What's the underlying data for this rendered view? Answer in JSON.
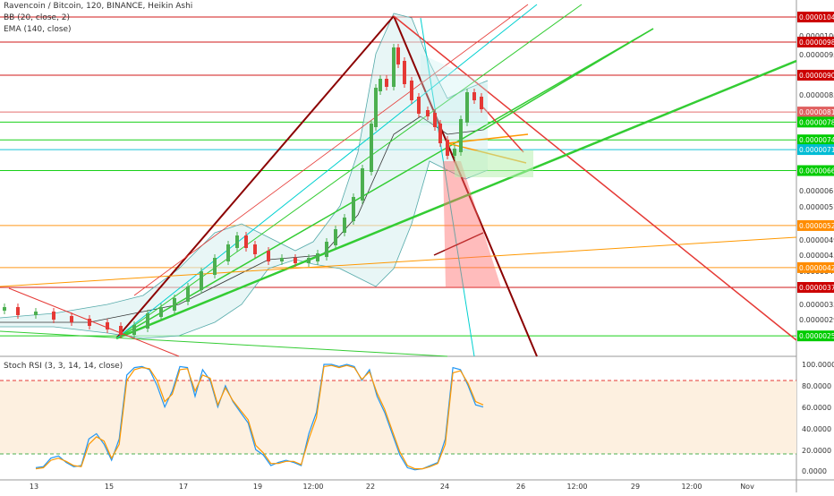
{
  "header": {
    "symbol_line": "Ravencoin / Bitcoin, 120, BINANCE, Heikin Ashi",
    "bb_line": "BB (20, close, 2)",
    "ema_line": "EMA (140, close)"
  },
  "stoch_label": "Stoch RSI (3, 3, 14, 14, close)",
  "chart_data": [
    {
      "type": "candlestick",
      "title": "Ravencoin / Bitcoin, 120, BINANCE, Heikin Ashi",
      "ylim": [
        2.3e-06,
        1.09e-05
      ],
      "price_ticks": [
        "0.00001000",
        "0.00000950",
        "0.00000850",
        "0.00000610",
        "0.00000570",
        "0.00000490",
        "0.00000450",
        "0.00000410",
        "0.00000330",
        "0.00000290"
      ],
      "x_ticks": [
        "13",
        "15",
        "17",
        "19",
        "12:00",
        "22",
        "24",
        "26",
        "12:00",
        "29",
        "12:00",
        "Nov"
      ],
      "price_tags": [
        {
          "label": "0.00001045",
          "value": 1.045e-05,
          "color": "#cc0000"
        },
        {
          "label": "0.00000983",
          "value": 9.83e-06,
          "color": "#cc0000"
        },
        {
          "label": "0.00000901",
          "value": 9.01e-06,
          "color": "#cc0000"
        },
        {
          "label": "0.00000810",
          "value": 8.1e-06,
          "color": "#e06060"
        },
        {
          "label": "0.00000785",
          "value": 7.85e-06,
          "color": "#00cc00"
        },
        {
          "label": "0.00000741",
          "value": 7.41e-06,
          "color": "#00cc00"
        },
        {
          "label": "0.00000717",
          "value": 7.17e-06,
          "color": "#00bcd4"
        },
        {
          "label": "0.00000665",
          "value": 6.65e-06,
          "color": "#00cc00"
        },
        {
          "label": "0.00000529",
          "value": 5.29e-06,
          "color": "#ff8c00"
        },
        {
          "label": "0.00000425",
          "value": 4.25e-06,
          "color": "#ff8c00"
        },
        {
          "label": "0.00000376",
          "value": 3.76e-06,
          "color": "#cc0000"
        },
        {
          "label": "0.00000256",
          "value": 2.56e-06,
          "color": "#00cc00"
        }
      ],
      "colors": {
        "up": "#4caf50",
        "down": "#e53935",
        "bb_fill": "#d8f0f0",
        "ema": "#333333"
      }
    },
    {
      "type": "line",
      "title": "Stoch RSI (3, 3, 14, 14, close)",
      "ylim": [
        -10,
        105
      ],
      "y_ticks": [
        "100.0000",
        "80.0000",
        "60.0000",
        "40.0000",
        "20.0000",
        "0.0000"
      ],
      "bands": [
        80,
        20
      ],
      "series": [
        {
          "color": "#2196f3",
          "values": [
            3,
            4,
            12,
            14,
            8,
            4,
            5,
            30,
            35,
            25,
            10,
            30,
            90,
            97,
            98,
            95,
            80,
            60,
            75,
            98,
            97,
            70,
            95,
            85,
            60,
            80,
            65,
            55,
            45,
            20,
            15,
            5,
            8,
            10,
            8,
            5,
            35,
            55,
            100,
            100,
            98,
            100,
            98,
            85,
            95,
            70,
            55,
            35,
            15,
            3,
            1,
            2,
            5,
            8,
            30,
            97,
            95,
            80,
            62,
            60
          ]
        },
        {
          "color": "#ff9800",
          "values": [
            2,
            3,
            10,
            12,
            9,
            5,
            4,
            25,
            32,
            28,
            12,
            25,
            85,
            95,
            97,
            96,
            85,
            65,
            72,
            95,
            96,
            75,
            90,
            87,
            62,
            78,
            66,
            57,
            48,
            24,
            17,
            7,
            7,
            9,
            9,
            6,
            30,
            50,
            98,
            99,
            97,
            99,
            97,
            86,
            93,
            73,
            58,
            38,
            18,
            5,
            2,
            2,
            4,
            7,
            25,
            92,
            94,
            82,
            65,
            62
          ]
        }
      ]
    }
  ]
}
